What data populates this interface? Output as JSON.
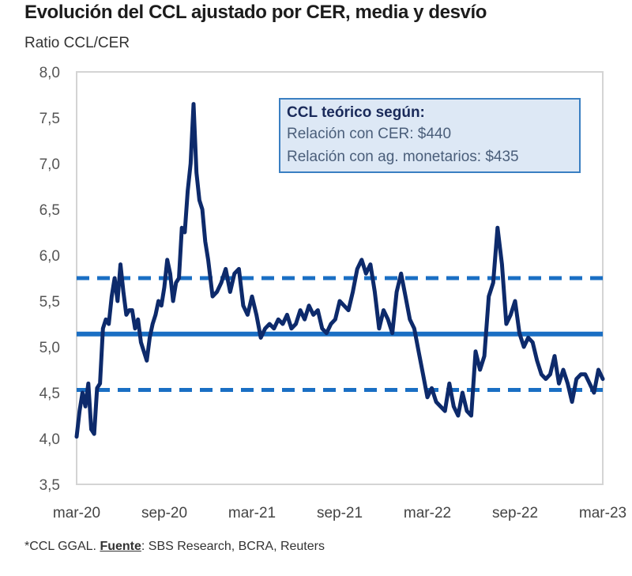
{
  "header": {
    "title": "Evolución del CCL ajustado por CER, media y desvío",
    "subtitle": "Ratio CCL/CER"
  },
  "callout": {
    "heading": "CCL teórico según:",
    "line1": "Relación con CER: $440",
    "line2": "Relación con ag. monetarios: $435"
  },
  "footer": {
    "prefix": "*CCL GGAL. ",
    "source_label": "Fuente",
    "source_text": ": SBS Research, BCRA, Reuters"
  },
  "colors": {
    "series": "#0d2a6b",
    "mean": "#1a6fc4",
    "band": "#1a6fc4",
    "axis": "#d0d0d0",
    "callout_bg": "#dde8f5",
    "callout_border": "#3a7fc2"
  },
  "chart_data": {
    "type": "line",
    "title": "Evolución del CCL ajustado por CER, media y desvío",
    "ylabel": "Ratio CCL/CER",
    "xlabel": "",
    "ylim": [
      3.5,
      8.0
    ],
    "yticks": [
      "3,5",
      "4,0",
      "4,5",
      "5,0",
      "5,5",
      "6,0",
      "6,5",
      "7,0",
      "7,5",
      "8,0"
    ],
    "ytick_values": [
      3.5,
      4.0,
      4.5,
      5.0,
      5.5,
      6.0,
      6.5,
      7.0,
      7.5,
      8.0
    ],
    "xticks": [
      "mar-20",
      "sep-20",
      "mar-21",
      "sep-21",
      "mar-22",
      "sep-22",
      "mar-23"
    ],
    "xlim_months": [
      0,
      36
    ],
    "x_unit": "months since mar-20",
    "grid": false,
    "reference_lines": [
      {
        "name": "media",
        "value": 5.14,
        "style": "solid"
      },
      {
        "name": "media + desvío",
        "value": 5.75,
        "style": "dashed"
      },
      {
        "name": "media - desvío",
        "value": 4.53,
        "style": "dashed"
      }
    ],
    "series": [
      {
        "name": "CCL/CER",
        "x": [
          0,
          0.2,
          0.4,
          0.6,
          0.8,
          1.0,
          1.2,
          1.4,
          1.6,
          1.8,
          2.0,
          2.2,
          2.4,
          2.6,
          2.8,
          3.0,
          3.2,
          3.4,
          3.6,
          3.8,
          4.0,
          4.2,
          4.4,
          4.6,
          4.8,
          5.0,
          5.2,
          5.4,
          5.6,
          5.8,
          6.0,
          6.2,
          6.4,
          6.6,
          6.8,
          7.0,
          7.2,
          7.4,
          7.6,
          7.8,
          8.0,
          8.2,
          8.4,
          8.6,
          8.8,
          9.0,
          9.3,
          9.6,
          9.9,
          10.2,
          10.5,
          10.8,
          11.1,
          11.4,
          11.7,
          12.0,
          12.3,
          12.6,
          12.9,
          13.2,
          13.5,
          13.8,
          14.1,
          14.4,
          14.7,
          15.0,
          15.3,
          15.6,
          15.9,
          16.2,
          16.5,
          16.8,
          17.1,
          17.4,
          17.7,
          18.0,
          18.3,
          18.6,
          18.9,
          19.2,
          19.5,
          19.8,
          20.1,
          20.4,
          20.7,
          21.0,
          21.3,
          21.6,
          21.9,
          22.2,
          22.5,
          22.8,
          23.1,
          23.4,
          23.7,
          24.0,
          24.3,
          24.6,
          24.9,
          25.2,
          25.5,
          25.8,
          26.1,
          26.4,
          26.7,
          27.0,
          27.3,
          27.6,
          27.9,
          28.2,
          28.5,
          28.8,
          29.1,
          29.4,
          29.7,
          30.0,
          30.3,
          30.6,
          30.9,
          31.2,
          31.5,
          31.8,
          32.1,
          32.4,
          32.7,
          33.0,
          33.3,
          33.6,
          33.9,
          34.2,
          34.5,
          34.8,
          35.1,
          35.4,
          35.7,
          36.0
        ],
        "values": [
          4.02,
          4.3,
          4.5,
          4.35,
          4.6,
          4.1,
          4.05,
          4.55,
          4.6,
          5.2,
          5.3,
          5.25,
          5.55,
          5.75,
          5.5,
          5.9,
          5.6,
          5.35,
          5.4,
          5.4,
          5.2,
          5.3,
          5.05,
          4.95,
          4.85,
          5.1,
          5.25,
          5.35,
          5.5,
          5.45,
          5.65,
          5.95,
          5.8,
          5.5,
          5.7,
          5.75,
          6.3,
          6.25,
          6.7,
          7.0,
          7.65,
          6.9,
          6.6,
          6.5,
          6.15,
          5.95,
          5.55,
          5.6,
          5.7,
          5.85,
          5.6,
          5.8,
          5.85,
          5.45,
          5.35,
          5.55,
          5.35,
          5.1,
          5.2,
          5.25,
          5.2,
          5.3,
          5.25,
          5.35,
          5.2,
          5.25,
          5.4,
          5.3,
          5.45,
          5.35,
          5.4,
          5.2,
          5.15,
          5.25,
          5.3,
          5.5,
          5.45,
          5.4,
          5.6,
          5.85,
          5.95,
          5.8,
          5.9,
          5.6,
          5.2,
          5.4,
          5.3,
          5.15,
          5.6,
          5.8,
          5.55,
          5.3,
          5.2,
          4.95,
          4.7,
          4.45,
          4.55,
          4.4,
          4.35,
          4.3,
          4.6,
          4.35,
          4.25,
          4.5,
          4.3,
          4.25,
          4.95,
          4.75,
          4.9,
          5.55,
          5.7,
          6.3,
          5.9,
          5.25,
          5.35,
          5.5,
          5.15,
          5.0,
          5.1,
          5.05,
          4.85,
          4.7,
          4.65,
          4.7,
          4.9,
          4.6,
          4.75,
          4.6,
          4.4,
          4.65,
          4.7,
          4.7,
          4.6,
          4.5,
          4.75,
          4.65
        ]
      }
    ]
  }
}
